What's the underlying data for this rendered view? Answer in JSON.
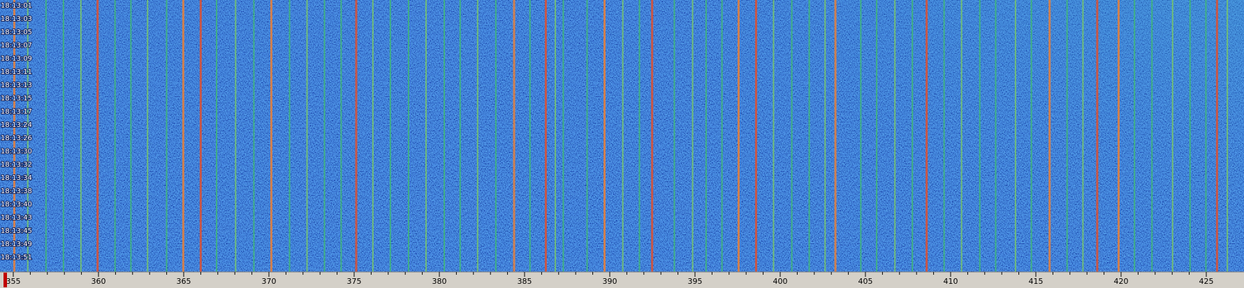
{
  "time_labels": [
    "18:13:01",
    "18:13:03",
    "18:13:05",
    "18:13:07",
    "18:13:09",
    "18:13:11",
    "18:13:13",
    "18:13:15",
    "18:13:17",
    "18:13:24",
    "18:13:26",
    "18:13:30",
    "18:13:32",
    "18:13:34",
    "18:13:38",
    "18:13:40",
    "18:13:43",
    "18:13:45",
    "18:13:49",
    "18:13:51"
  ],
  "frequency_axis": {
    "ticks": [
      355,
      360,
      365,
      370,
      375,
      380,
      385,
      390,
      395,
      400,
      405,
      410,
      415,
      420,
      425
    ]
  }
}
